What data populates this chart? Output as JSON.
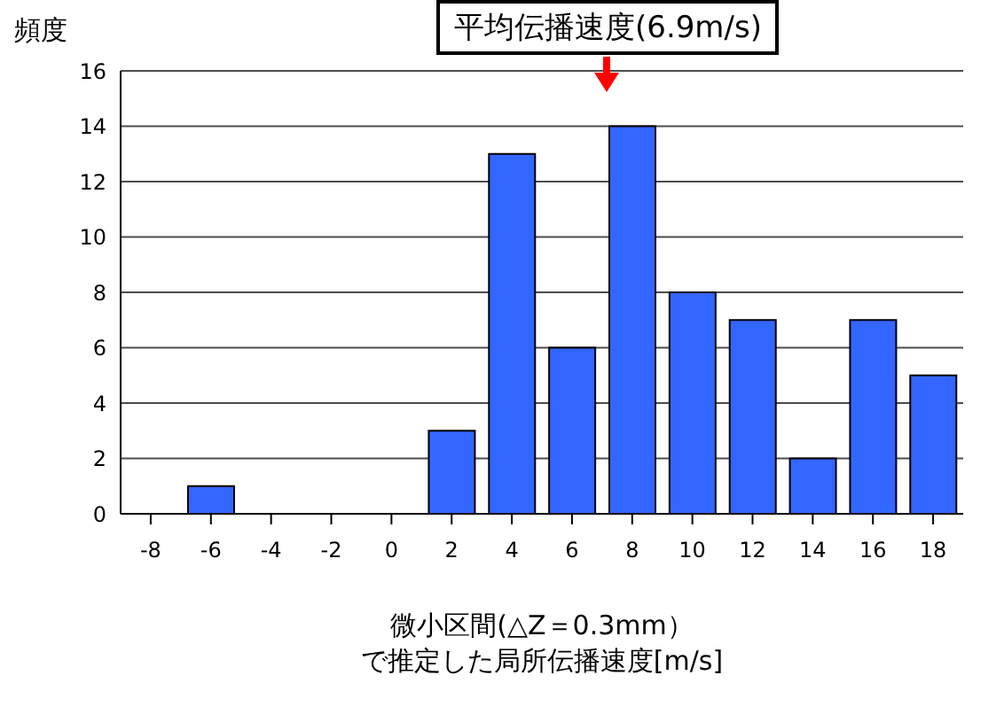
{
  "chart_data": {
    "type": "bar",
    "ylabel": "頻度",
    "xlabel": "微小区間(△Z＝0.3mm）で推定した局所伝播速度[m/s]",
    "categories": [
      "-8",
      "-6",
      "-4",
      "-2",
      "0",
      "2",
      "4",
      "6",
      "8",
      "10",
      "12",
      "14",
      "16",
      "18"
    ],
    "values": [
      0,
      1,
      0,
      0,
      0,
      3,
      13,
      6,
      14,
      8,
      7,
      2,
      7,
      5
    ],
    "color": "#3366ff",
    "ylim": [
      0,
      16
    ],
    "yticks": [
      0,
      2,
      4,
      6,
      8,
      10,
      12,
      14,
      16
    ],
    "grid": "y",
    "annotations": [
      "平均伝播速度(6.9m/s)"
    ]
  }
}
